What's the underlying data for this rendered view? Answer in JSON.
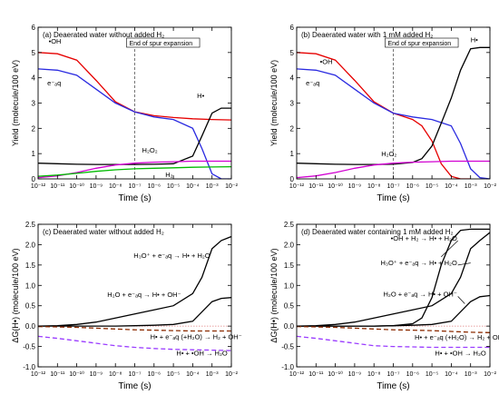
{
  "chart_data": [
    {
      "type": "line",
      "panel_label": "(a)",
      "title": "Deaerated water without added H₂",
      "xlabel": "Time (s)",
      "ylabel": "Yield (molecule/100 eV)",
      "xscale": "log",
      "xlim": [
        1e-12,
        0.01
      ],
      "ylim": [
        0,
        6
      ],
      "yticks": [
        0,
        1,
        2,
        3,
        4,
        5,
        6
      ],
      "xtick_labels": [
        "10⁻¹²",
        "10⁻¹¹",
        "10⁻¹⁰",
        "10⁻⁹",
        "10⁻⁸",
        "10⁻⁷",
        "10⁻⁶",
        "10⁻⁵",
        "10⁻⁴",
        "10⁻³",
        "10⁻²"
      ],
      "marker": {
        "x": 1e-07,
        "label": "End of spur expansion"
      },
      "series": [
        {
          "name": "•OH",
          "color": "#e60000",
          "x": [
            1e-12,
            1e-11,
            1e-10,
            1e-09,
            1e-08,
            1e-07,
            1e-06,
            1e-05,
            0.0001,
            0.001,
            0.01
          ],
          "y": [
            5.0,
            4.95,
            4.7,
            3.9,
            3.05,
            2.65,
            2.5,
            2.43,
            2.38,
            2.35,
            2.33
          ]
        },
        {
          "name": "e⁻ₐq",
          "color": "#2a2ae0",
          "x": [
            1e-12,
            1e-11,
            1e-10,
            1e-09,
            1e-08,
            1e-07,
            1e-06,
            1e-05,
            0.0001,
            0.0003,
            0.001,
            0.003,
            0.01
          ],
          "y": [
            4.35,
            4.3,
            4.1,
            3.55,
            3.0,
            2.65,
            2.45,
            2.35,
            2.0,
            1.2,
            0.2,
            0.0,
            0.0
          ]
        },
        {
          "name": "H•",
          "color": "#000000",
          "x": [
            1e-12,
            1e-11,
            1e-10,
            1e-09,
            1e-08,
            1e-07,
            1e-06,
            1e-05,
            0.0001,
            0.0003,
            0.001,
            0.003,
            0.01
          ],
          "y": [
            0.62,
            0.6,
            0.58,
            0.57,
            0.57,
            0.57,
            0.58,
            0.6,
            0.9,
            1.7,
            2.6,
            2.8,
            2.8
          ]
        },
        {
          "name": "H₂O₂",
          "color": "#d100d1",
          "x": [
            1e-12,
            1e-11,
            1e-10,
            1e-09,
            1e-08,
            1e-07,
            1e-06,
            1e-05,
            0.0001,
            0.001,
            0.01
          ],
          "y": [
            0.05,
            0.12,
            0.25,
            0.42,
            0.55,
            0.62,
            0.66,
            0.68,
            0.7,
            0.7,
            0.7
          ]
        },
        {
          "name": "H₂",
          "color": "#00bb00",
          "x": [
            1e-12,
            1e-11,
            1e-10,
            1e-09,
            1e-08,
            1e-07,
            1e-06,
            1e-05,
            0.0001,
            0.001,
            0.01
          ],
          "y": [
            0.1,
            0.15,
            0.22,
            0.3,
            0.36,
            0.4,
            0.42,
            0.44,
            0.46,
            0.47,
            0.48
          ]
        }
      ]
    },
    {
      "type": "line",
      "panel_label": "(b)",
      "title": "Deaerated water with 1 mM added H₂",
      "xlabel": "Time (s)",
      "ylabel": "Yield (molecule/100 eV)",
      "xscale": "log",
      "xlim": [
        1e-12,
        0.01
      ],
      "ylim": [
        0,
        6
      ],
      "yticks": [
        0,
        1,
        2,
        3,
        4,
        5,
        6
      ],
      "xtick_labels": [
        "10⁻¹²",
        "10⁻¹¹",
        "10⁻¹⁰",
        "10⁻⁹",
        "10⁻⁸",
        "10⁻⁷",
        "10⁻⁶",
        "10⁻⁵",
        "10⁻⁴",
        "10⁻³",
        "10⁻²"
      ],
      "marker": {
        "x": 1e-07,
        "label": "End of spur expansion"
      },
      "series": [
        {
          "name": "•OH",
          "color": "#e60000",
          "x": [
            1e-12,
            1e-11,
            1e-10,
            1e-09,
            1e-08,
            1e-07,
            1e-06,
            3e-06,
            1e-05,
            3e-05,
            0.0001,
            0.0003,
            0.001
          ],
          "y": [
            5.0,
            4.95,
            4.7,
            3.9,
            3.05,
            2.6,
            2.35,
            2.1,
            1.5,
            0.6,
            0.1,
            0.0,
            0.0
          ]
        },
        {
          "name": "e⁻ₐq",
          "color": "#2a2ae0",
          "x": [
            1e-12,
            1e-11,
            1e-10,
            1e-09,
            1e-08,
            1e-07,
            1e-06,
            1e-05,
            0.0001,
            0.0003,
            0.001,
            0.003,
            0.01
          ],
          "y": [
            4.35,
            4.3,
            4.1,
            3.55,
            3.0,
            2.6,
            2.45,
            2.35,
            2.1,
            1.4,
            0.4,
            0.05,
            0.0
          ]
        },
        {
          "name": "H•",
          "color": "#000000",
          "x": [
            1e-12,
            1e-11,
            1e-10,
            1e-09,
            1e-08,
            1e-07,
            1e-06,
            3e-06,
            1e-05,
            3e-05,
            0.0001,
            0.0003,
            0.001,
            0.003,
            0.01
          ],
          "y": [
            0.62,
            0.6,
            0.58,
            0.57,
            0.57,
            0.58,
            0.65,
            0.8,
            1.3,
            2.2,
            3.2,
            4.3,
            5.15,
            5.2,
            5.2
          ]
        },
        {
          "name": "H₂O₂",
          "color": "#d100d1",
          "x": [
            1e-12,
            1e-11,
            1e-10,
            1e-09,
            1e-08,
            1e-07,
            1e-06,
            1e-05,
            0.0001,
            0.001,
            0.01
          ],
          "y": [
            0.05,
            0.12,
            0.25,
            0.42,
            0.55,
            0.62,
            0.66,
            0.68,
            0.7,
            0.7,
            0.7
          ]
        }
      ]
    },
    {
      "type": "line",
      "panel_label": "(c)",
      "title": "Deaerated water without added H₂",
      "xlabel": "Time (s)",
      "ylabel": "ΔG(H•) (molecule/100 eV)",
      "xscale": "log",
      "xlim": [
        1e-12,
        0.01
      ],
      "ylim": [
        -1.0,
        2.5
      ],
      "yticks": [
        -1.0,
        -0.5,
        0.0,
        0.5,
        1.0,
        1.5,
        2.0,
        2.5
      ],
      "ytick_labels": [
        "-1.0",
        "-0.5",
        "0.0",
        "0.5",
        "1.0",
        "1.5",
        "2.0",
        "2.5"
      ],
      "xtick_labels": [
        "10⁻¹²",
        "10⁻¹¹",
        "10⁻¹⁰",
        "10⁻⁹",
        "10⁻⁸",
        "10⁻⁷",
        "10⁻⁶",
        "10⁻⁵",
        "10⁻⁴",
        "10⁻³",
        "10⁻²"
      ],
      "zero_line": true,
      "series": [
        {
          "name": "H₃O⁺ + e⁻ₐq → H• + H₂O",
          "color": "#000000",
          "dash": "solid",
          "x": [
            1e-12,
            1e-11,
            1e-10,
            1e-09,
            1e-08,
            1e-07,
            1e-06,
            1e-05,
            0.0001,
            0.0003,
            0.001,
            0.003,
            0.01
          ],
          "y": [
            0.0,
            0.01,
            0.04,
            0.1,
            0.2,
            0.3,
            0.4,
            0.5,
            0.8,
            1.2,
            1.9,
            2.1,
            2.2
          ]
        },
        {
          "name": "H₂O + e⁻ₐq → H• + OH⁻",
          "color": "#000000",
          "dash": "solid",
          "x": [
            1e-12,
            1e-11,
            1e-10,
            1e-09,
            1e-08,
            1e-07,
            1e-06,
            1e-05,
            0.0001,
            0.0003,
            0.001,
            0.003,
            0.01
          ],
          "y": [
            0.0,
            0.0,
            0.0,
            0.0,
            0.0,
            0.01,
            0.02,
            0.04,
            0.12,
            0.35,
            0.6,
            0.68,
            0.7
          ]
        },
        {
          "name": "H• + e⁻ₐq (+H₂O) → H₂ + OH⁻",
          "color": "#8b2a00",
          "dash": "dash",
          "x": [
            1e-12,
            1e-11,
            1e-10,
            1e-09,
            1e-08,
            1e-07,
            1e-06,
            1e-05,
            0.0001,
            0.001,
            0.01
          ],
          "y": [
            -0.01,
            -0.02,
            -0.03,
            -0.05,
            -0.07,
            -0.09,
            -0.1,
            -0.11,
            -0.12,
            -0.12,
            -0.12
          ]
        },
        {
          "name": "H• + •OH → H₂O",
          "color": "#9a3cff",
          "dash": "dash",
          "x": [
            1e-12,
            1e-11,
            1e-10,
            1e-09,
            1e-08,
            1e-07,
            1e-06,
            1e-05,
            0.0001,
            0.001,
            0.01
          ],
          "y": [
            -0.25,
            -0.3,
            -0.36,
            -0.42,
            -0.48,
            -0.52,
            -0.55,
            -0.57,
            -0.58,
            -0.59,
            -0.6
          ]
        }
      ]
    },
    {
      "type": "line",
      "panel_label": "(d)",
      "title": "Deaerated water containing 1 mM added H₂",
      "xlabel": "Time (s)",
      "ylabel": "ΔG(H•) (molecule/100 eV)",
      "xscale": "log",
      "xlim": [
        1e-12,
        0.01
      ],
      "ylim": [
        -1.0,
        2.5
      ],
      "yticks": [
        -1.0,
        -0.5,
        0.0,
        0.5,
        1.0,
        1.5,
        2.0,
        2.5
      ],
      "ytick_labels": [
        "-1.0",
        "-0.5",
        "0.0",
        "0.5",
        "1.0",
        "1.5",
        "2.0",
        "2.5"
      ],
      "xtick_labels": [
        "10⁻¹²",
        "10⁻¹¹",
        "10⁻¹⁰",
        "10⁻⁹",
        "10⁻⁸",
        "10⁻⁷",
        "10⁻⁶",
        "10⁻⁵",
        "10⁻⁴",
        "10⁻³",
        "10⁻²"
      ],
      "zero_line": true,
      "series": [
        {
          "name": "•OH + H₂ → H• + H₂O",
          "color": "#000000",
          "dash": "solid",
          "x": [
            1e-12,
            1e-08,
            1e-07,
            1e-06,
            3e-06,
            1e-05,
            3e-05,
            0.0001,
            0.0003,
            0.001,
            0.01
          ],
          "y": [
            0.0,
            0.0,
            0.01,
            0.06,
            0.2,
            0.7,
            1.5,
            2.1,
            2.35,
            2.38,
            2.38
          ]
        },
        {
          "name": "H₃O⁺ + e⁻ₐq → H• + H₂O",
          "color": "#000000",
          "dash": "solid",
          "x": [
            1e-12,
            1e-11,
            1e-10,
            1e-09,
            1e-08,
            1e-07,
            1e-06,
            1e-05,
            0.0001,
            0.0003,
            0.001,
            0.003,
            0.01
          ],
          "y": [
            0.0,
            0.01,
            0.04,
            0.1,
            0.2,
            0.3,
            0.4,
            0.5,
            0.8,
            1.2,
            1.9,
            2.1,
            2.3
          ]
        },
        {
          "name": "H₂O + e⁻ₐq → H• + OH⁻",
          "color": "#000000",
          "dash": "solid",
          "x": [
            1e-12,
            1e-11,
            1e-10,
            1e-09,
            1e-08,
            1e-07,
            1e-06,
            1e-05,
            0.0001,
            0.0003,
            0.001,
            0.003,
            0.01
          ],
          "y": [
            0.0,
            0.0,
            0.0,
            0.0,
            0.0,
            0.01,
            0.02,
            0.04,
            0.12,
            0.35,
            0.6,
            0.72,
            0.75
          ]
        },
        {
          "name": "H• + e⁻ₐq (+H₂O) → H₂ + OH⁻",
          "color": "#8b2a00",
          "dash": "dash",
          "x": [
            1e-12,
            1e-11,
            1e-10,
            1e-09,
            1e-08,
            1e-07,
            1e-06,
            1e-05,
            0.0001,
            0.001,
            0.01
          ],
          "y": [
            -0.01,
            -0.02,
            -0.03,
            -0.05,
            -0.07,
            -0.09,
            -0.1,
            -0.11,
            -0.13,
            -0.15,
            -0.16
          ]
        },
        {
          "name": "H• + •OH → H₂O",
          "color": "#9a3cff",
          "dash": "dash",
          "x": [
            1e-12,
            1e-11,
            1e-10,
            1e-09,
            1e-08,
            1e-07,
            1e-06,
            1e-05,
            0.0001,
            0.001,
            0.01
          ],
          "y": [
            -0.25,
            -0.3,
            -0.36,
            -0.42,
            -0.48,
            -0.5,
            -0.51,
            -0.52,
            -0.52,
            -0.52,
            -0.52
          ]
        }
      ]
    }
  ]
}
